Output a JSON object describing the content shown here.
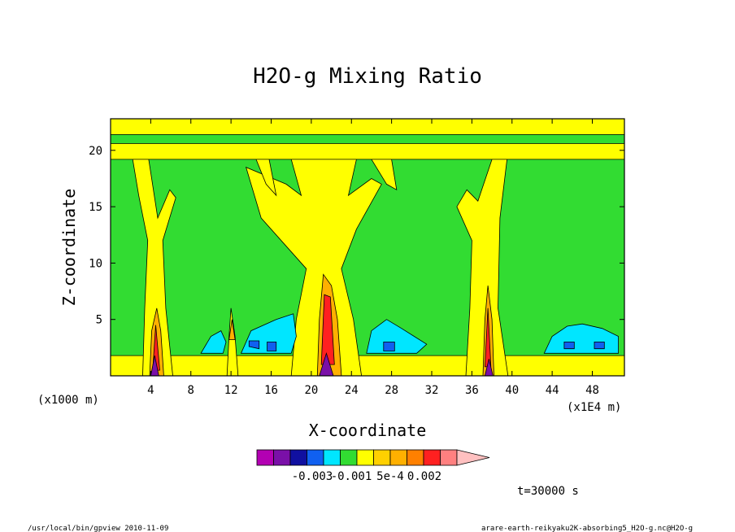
{
  "chart_data": {
    "type": "heatmap",
    "title": "H2O-g Mixing Ratio",
    "xlabel": "X-coordinate",
    "ylabel": "Z-coordinate",
    "x_unit_left": "(x1000 m)",
    "x_unit_right": "(x1E4 m)",
    "x_ticks": [
      "4",
      "8",
      "12",
      "16",
      "20",
      "24",
      "28",
      "32",
      "36",
      "40",
      "44",
      "48"
    ],
    "y_ticks": [
      "5",
      "10",
      "15",
      "20"
    ],
    "xlim": [
      0,
      51.2
    ],
    "ylim": [
      0,
      22.8
    ],
    "time_label": "t=30000 s",
    "colorbar": {
      "colors": [
        "#b300b3",
        "#7a10a8",
        "#1010a0",
        "#1060f0",
        "#00e6ff",
        "#32dc32",
        "#ffff00",
        "#ffd000",
        "#ffb000",
        "#ff8000",
        "#ff2020",
        "#ff8080",
        "#ffc0c0"
      ],
      "labels": [
        "-0.003",
        "-0.001",
        "5e-4",
        "0.002"
      ]
    },
    "regions": [
      {
        "color": "#32dc32",
        "polygons": [
          [
            [
              0,
              0
            ],
            [
              51.2,
              0
            ],
            [
              51.2,
              22.8
            ],
            [
              0,
              22.8
            ]
          ]
        ]
      },
      {
        "color": "#ffff00",
        "polygons": [
          [
            [
              0,
              19.2
            ],
            [
              51.2,
              19.2
            ],
            [
              51.2,
              20.6
            ],
            [
              0,
              20.6
            ]
          ],
          [
            [
              0,
              21.4
            ],
            [
              51.2,
              21.4
            ],
            [
              51.2,
              22.8
            ],
            [
              0,
              22.8
            ]
          ],
          [
            [
              0,
              0
            ],
            [
              51.2,
              0
            ],
            [
              51.2,
              1.8
            ],
            [
              0,
              1.8
            ]
          ],
          [
            [
              3.2,
              0
            ],
            [
              3.4,
              6
            ],
            [
              3.7,
              12
            ],
            [
              2.8,
              16
            ],
            [
              2.2,
              19.2
            ],
            [
              3.8,
              19.2
            ],
            [
              4.7,
              14
            ],
            [
              5.9,
              16.5
            ],
            [
              6.5,
              15.8
            ],
            [
              5.2,
              12
            ],
            [
              5.5,
              6
            ],
            [
              6.2,
              0
            ]
          ],
          [
            [
              11.6,
              0
            ],
            [
              11.8,
              3.5
            ],
            [
              12,
              6
            ],
            [
              12.4,
              3.5
            ],
            [
              12.7,
              0
            ]
          ],
          [
            [
              18,
              0
            ],
            [
              18.5,
              5
            ],
            [
              19.5,
              9.5
            ],
            [
              15,
              14
            ],
            [
              13.5,
              18.5
            ],
            [
              17.5,
              17
            ],
            [
              19,
              16
            ],
            [
              18,
              19.2
            ],
            [
              24.5,
              19.2
            ],
            [
              23.7,
              16
            ],
            [
              26,
              17.5
            ],
            [
              27,
              17
            ],
            [
              24.5,
              13
            ],
            [
              23,
              9.5
            ],
            [
              24.2,
              5
            ],
            [
              25,
              0
            ]
          ],
          [
            [
              35.4,
              0
            ],
            [
              35.8,
              6
            ],
            [
              36,
              12
            ],
            [
              34.5,
              15
            ],
            [
              35.5,
              16.5
            ],
            [
              36.6,
              15.5
            ],
            [
              38,
              19.2
            ],
            [
              39.5,
              19.2
            ],
            [
              38.8,
              14
            ],
            [
              38.6,
              6
            ],
            [
              39.6,
              0
            ]
          ],
          [
            [
              14.5,
              19.2
            ],
            [
              15.5,
              17
            ],
            [
              16.5,
              16
            ],
            [
              15.8,
              19.2
            ]
          ],
          [
            [
              26,
              19.2
            ],
            [
              27.5,
              17
            ],
            [
              28.5,
              16.5
            ],
            [
              28,
              19.2
            ]
          ]
        ]
      },
      {
        "color": "#00e6ff",
        "polygons": [
          [
            [
              9,
              2
            ],
            [
              10,
              3.5
            ],
            [
              11,
              4
            ],
            [
              11.5,
              3
            ],
            [
              11.2,
              2
            ]
          ],
          [
            [
              13,
              2
            ],
            [
              14,
              4
            ],
            [
              16.5,
              5
            ],
            [
              18.2,
              5.5
            ],
            [
              18.5,
              3.5
            ],
            [
              18,
              2
            ]
          ],
          [
            [
              25.5,
              2
            ],
            [
              26,
              4
            ],
            [
              27.5,
              5
            ],
            [
              29,
              4.2
            ],
            [
              31.5,
              2.8
            ],
            [
              30.5,
              2
            ]
          ],
          [
            [
              43.2,
              2
            ],
            [
              44,
              3.5
            ],
            [
              45.5,
              4.4
            ],
            [
              47,
              4.6
            ],
            [
              49,
              4.2
            ],
            [
              50.6,
              3.5
            ],
            [
              50.6,
              2
            ]
          ]
        ]
      },
      {
        "color": "#1060f0",
        "polygons": [
          [
            [
              13.8,
              2.6
            ],
            [
              14.8,
              2.4
            ],
            [
              14.8,
              3.1
            ],
            [
              13.8,
              3.1
            ]
          ],
          [
            [
              15.6,
              2.2
            ],
            [
              16.5,
              2.2
            ],
            [
              16.5,
              3
            ],
            [
              15.6,
              3
            ]
          ],
          [
            [
              27.2,
              2.2
            ],
            [
              28.3,
              2.2
            ],
            [
              28.3,
              3
            ],
            [
              27.2,
              3
            ]
          ],
          [
            [
              45.2,
              2.4
            ],
            [
              46.2,
              2.4
            ],
            [
              46.2,
              3
            ],
            [
              45.2,
              3
            ]
          ],
          [
            [
              48.2,
              2.4
            ],
            [
              49.2,
              2.4
            ],
            [
              49.2,
              3
            ],
            [
              48.2,
              3
            ]
          ]
        ]
      },
      {
        "color": "#ffb000",
        "polygons": [
          [
            [
              3.9,
              0
            ],
            [
              4.1,
              4
            ],
            [
              4.6,
              6
            ],
            [
              5,
              4
            ],
            [
              5.3,
              0
            ]
          ],
          [
            [
              11.8,
              3.2
            ],
            [
              12.1,
              5
            ],
            [
              12.4,
              3.2
            ]
          ],
          [
            [
              20.6,
              0
            ],
            [
              20.8,
              5
            ],
            [
              21.2,
              9
            ],
            [
              22,
              8
            ],
            [
              22.6,
              5
            ],
            [
              23,
              0
            ]
          ],
          [
            [
              37.1,
              0
            ],
            [
              37.3,
              5
            ],
            [
              37.6,
              8
            ],
            [
              38,
              5
            ],
            [
              38.2,
              0
            ]
          ]
        ]
      },
      {
        "color": "#ff2020",
        "polygons": [
          [
            [
              4.2,
              0.5
            ],
            [
              4.5,
              4.5
            ],
            [
              4.9,
              0.5
            ]
          ],
          [
            [
              21,
              1
            ],
            [
              21.3,
              7.2
            ],
            [
              21.9,
              7
            ],
            [
              22.3,
              1
            ]
          ],
          [
            [
              37.3,
              0.8
            ],
            [
              37.6,
              6
            ],
            [
              37.9,
              0.8
            ]
          ]
        ]
      },
      {
        "color": "#7a10a8",
        "polygons": [
          [
            [
              4,
              0
            ],
            [
              4.4,
              1.8
            ],
            [
              4.8,
              0
            ]
          ],
          [
            [
              20.8,
              0
            ],
            [
              21.5,
              2
            ],
            [
              22.2,
              0
            ]
          ],
          [
            [
              37.3,
              0
            ],
            [
              37.7,
              1.5
            ],
            [
              38.1,
              0
            ]
          ]
        ]
      }
    ]
  },
  "footer": {
    "left": "/usr/local/bin/gpview  2010-11-09",
    "right": "arare-earth-reikyaku2K-absorbing5_H2O-g.nc@H2O-g"
  }
}
